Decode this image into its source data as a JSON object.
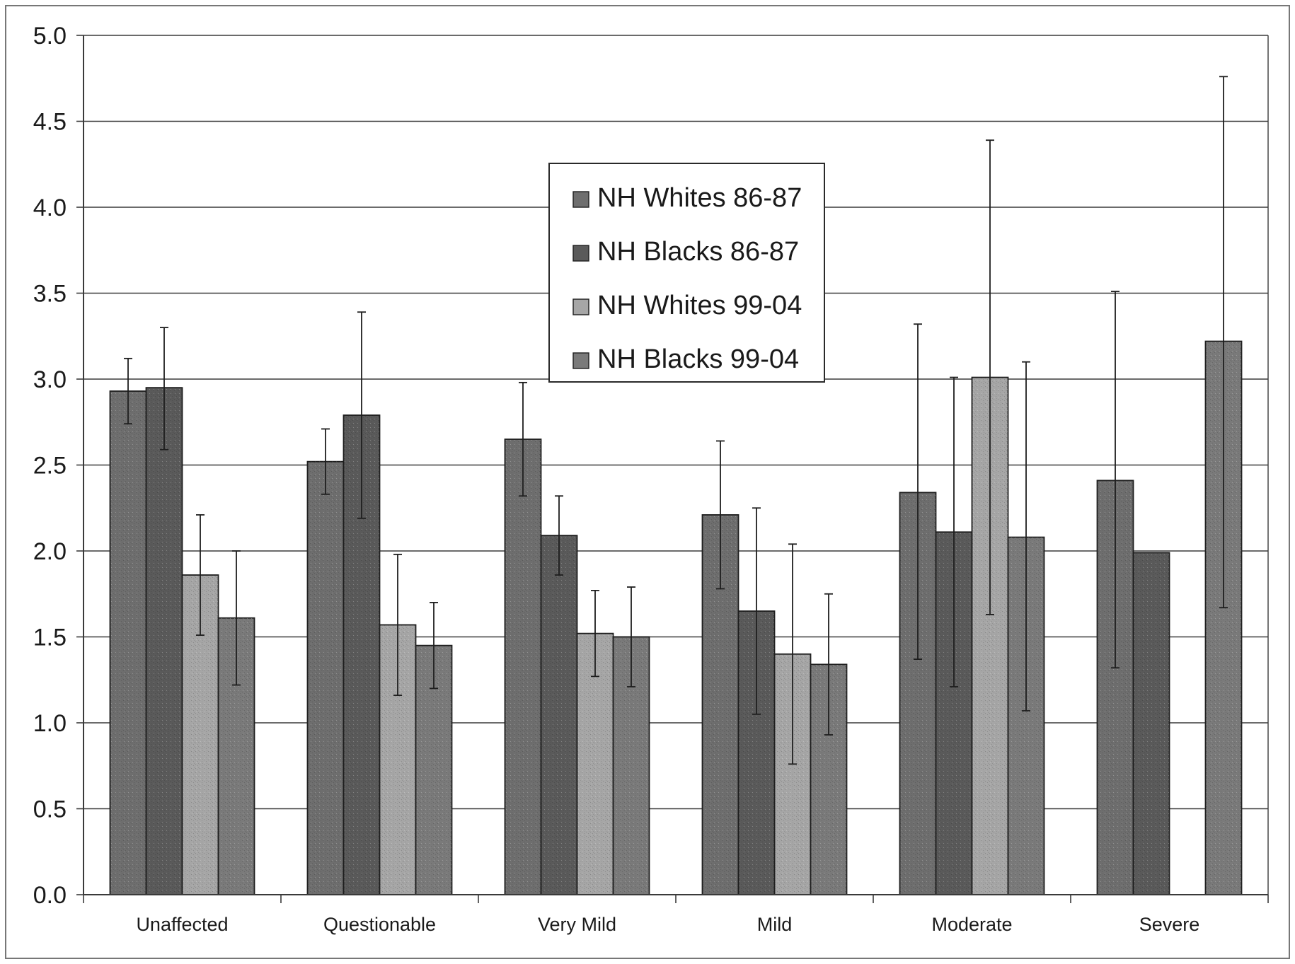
{
  "chart_data": {
    "type": "bar",
    "categories": [
      "Unaffected",
      "Questionable",
      "Very Mild",
      "Mild",
      "Moderate",
      "Severe"
    ],
    "series": [
      {
        "name": "NH Whites 86-87",
        "color": "#6e6e6e",
        "values": [
          2.93,
          2.52,
          2.65,
          2.21,
          2.34,
          2.41
        ],
        "err_low": [
          2.74,
          2.33,
          2.32,
          1.78,
          1.37,
          1.32
        ],
        "err_high": [
          3.12,
          2.71,
          2.98,
          2.64,
          3.32,
          3.51
        ]
      },
      {
        "name": "NH Blacks 86-87",
        "color": "#5a5a5a",
        "values": [
          2.95,
          2.79,
          2.09,
          1.65,
          2.11,
          1.99
        ],
        "err_low": [
          2.59,
          2.19,
          1.86,
          1.05,
          1.21,
          null
        ],
        "err_high": [
          3.3,
          3.39,
          2.32,
          2.25,
          3.01,
          null
        ]
      },
      {
        "name": "NH Whites 99-04",
        "color": "#a6a6a6",
        "values": [
          1.86,
          1.57,
          1.52,
          1.4,
          3.01,
          null
        ],
        "err_low": [
          1.51,
          1.16,
          1.27,
          0.76,
          1.63,
          null
        ],
        "err_high": [
          2.21,
          1.98,
          1.77,
          2.04,
          4.39,
          null
        ]
      },
      {
        "name": "NH Blacks 99-04",
        "color": "#7a7a7a",
        "values": [
          1.61,
          1.45,
          1.5,
          1.34,
          2.08,
          3.22
        ],
        "err_low": [
          1.22,
          1.2,
          1.21,
          0.93,
          1.07,
          1.67
        ],
        "err_high": [
          2.0,
          1.7,
          1.79,
          1.75,
          3.1,
          4.76
        ]
      }
    ],
    "ylim": [
      0,
      5
    ],
    "yticks": [
      "0.0",
      "0.5",
      "1.0",
      "1.5",
      "2.0",
      "2.5",
      "3.0",
      "3.5",
      "4.0",
      "4.5",
      "5.0"
    ],
    "grid": true,
    "legend_placement": "top-center",
    "title": "",
    "xlabel": "",
    "ylabel": ""
  }
}
